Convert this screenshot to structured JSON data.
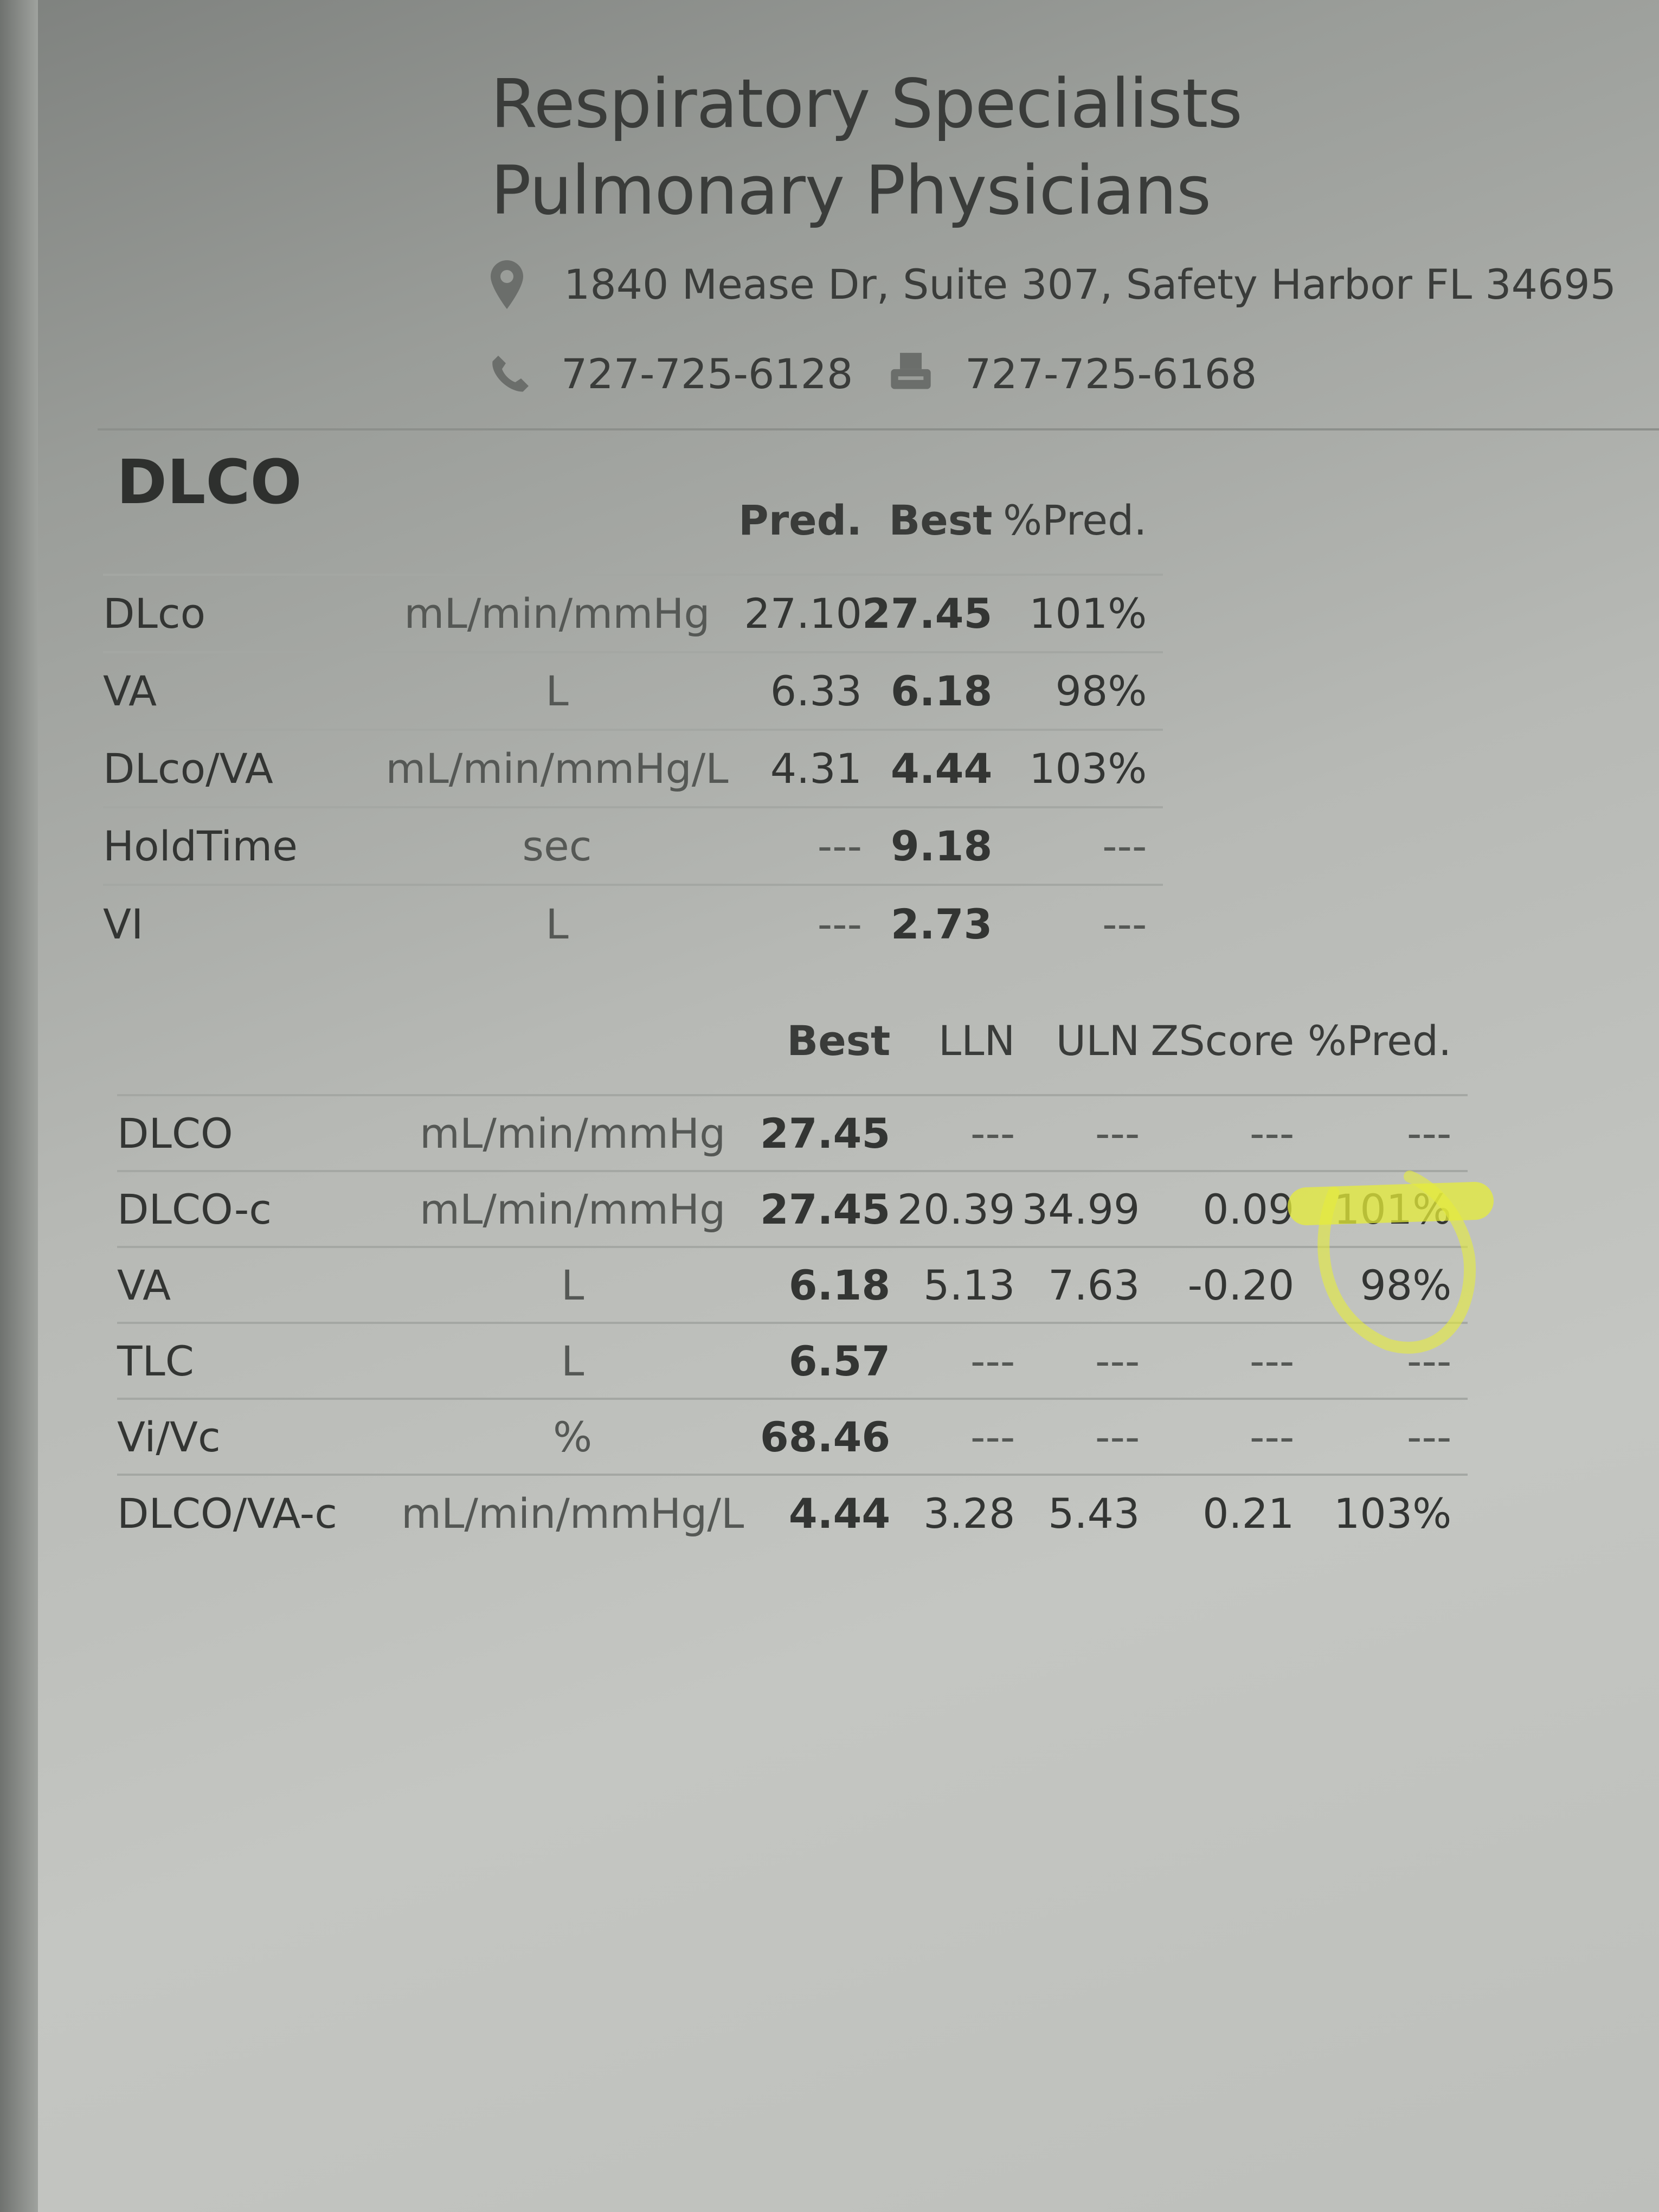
{
  "header": {
    "title_line1": "Respiratory Specialists",
    "title_line2": "Pulmonary Physicians",
    "address": "1840 Mease Dr, Suite 307, Safety Harbor FL 34695",
    "phone": "727-725-6128",
    "fax": "727-725-6168",
    "icons": [
      "location-pin-icon",
      "phone-icon",
      "fax-icon"
    ]
  },
  "section": {
    "title": "DLCO"
  },
  "table1": {
    "columns": [
      "",
      "",
      "Pred.",
      "Best",
      "%Pred."
    ],
    "rows": [
      [
        "DLco",
        "mL/min/mmHg",
        "27.10",
        "27.45",
        "101%"
      ],
      [
        "VA",
        "L",
        "6.33",
        "6.18",
        "98%"
      ],
      [
        "DLco/VA",
        "mL/min/mmHg/L",
        "4.31",
        "4.44",
        "103%"
      ],
      [
        "HoldTime",
        "sec",
        "---",
        "9.18",
        "---"
      ],
      [
        "VI",
        "L",
        "---",
        "2.73",
        "---"
      ]
    ]
  },
  "table2": {
    "columns": [
      "",
      "",
      "Best",
      "LLN",
      "ULN",
      "ZScore",
      "%Pred."
    ],
    "rows": [
      [
        "DLCO",
        "mL/min/mmHg",
        "27.45",
        "---",
        "---",
        "---",
        "---"
      ],
      [
        "DLCO-c",
        "mL/min/mmHg",
        "27.45",
        "20.39",
        "34.99",
        "0.09",
        "101%"
      ],
      [
        "VA",
        "L",
        "6.18",
        "5.13",
        "7.63",
        "-0.20",
        "98%"
      ],
      [
        "TLC",
        "L",
        "6.57",
        "---",
        "---",
        "---",
        "---"
      ],
      [
        "Vi/Vc",
        "%",
        "68.46",
        "---",
        "---",
        "---",
        "---"
      ],
      [
        "DLCO/VA-c",
        "mL/min/mmHg/L",
        "4.44",
        "3.28",
        "5.43",
        "0.21",
        "103%"
      ]
    ]
  },
  "colors": {
    "highlighter": "#e6ec3a",
    "text": "#333533"
  }
}
